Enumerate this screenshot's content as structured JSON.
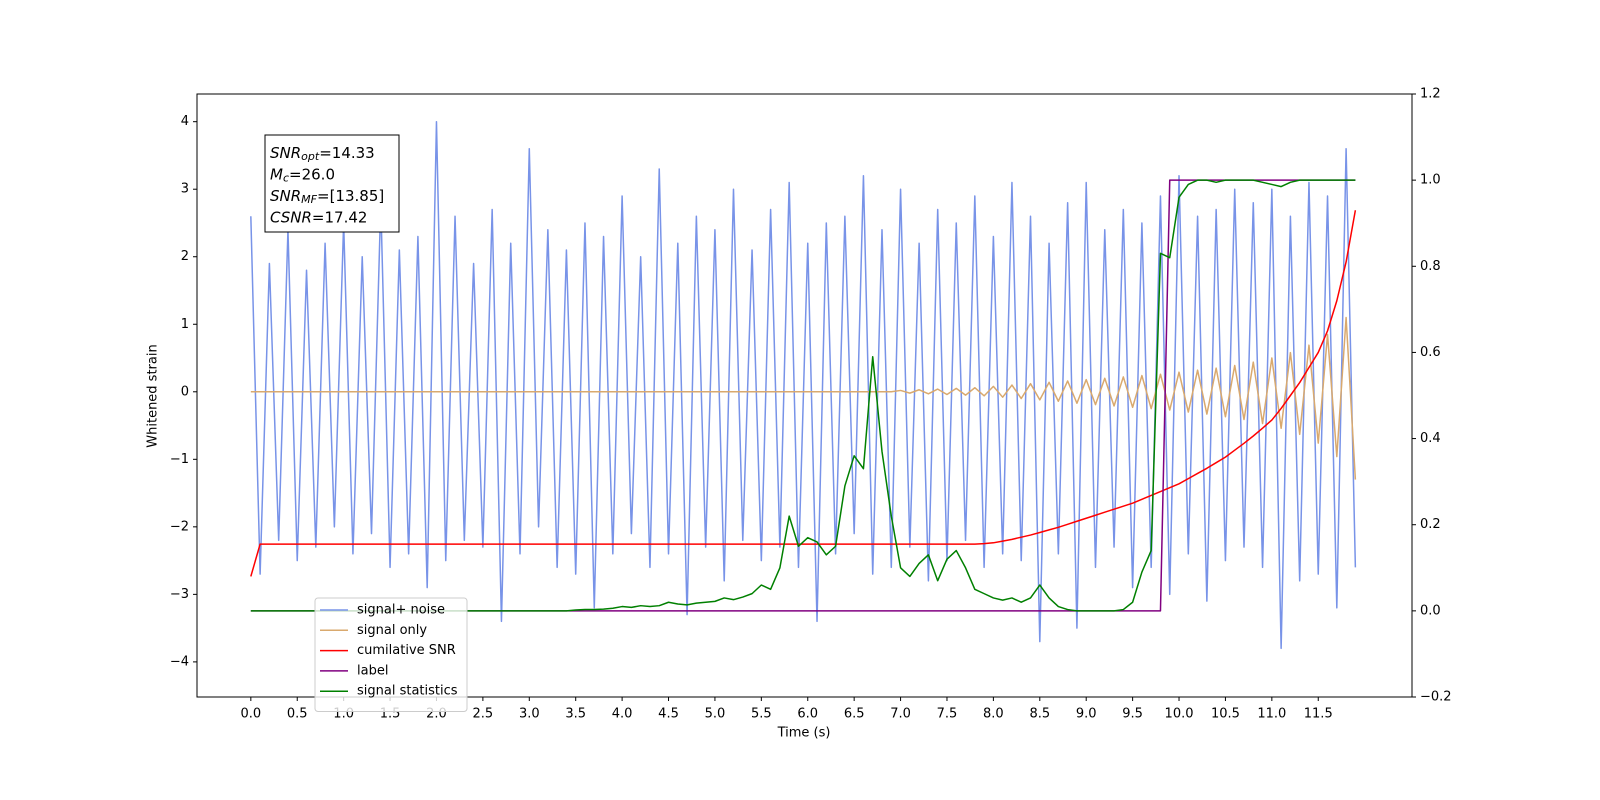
{
  "chart_data": {
    "type": "line",
    "xlabel": "Time (s)",
    "ylabel": "Whitened strain",
    "xlim": [
      -0.58,
      12.51
    ],
    "ylim": [
      -4.52,
      4.41
    ],
    "y2lim": [
      -0.2,
      1.2
    ],
    "xticks": [
      {
        "value": 0,
        "label": "0.0"
      },
      0.5,
      {
        "value": 1,
        "label": "1.0"
      },
      1.5,
      {
        "value": 2,
        "label": "2.0"
      },
      2.5,
      {
        "value": 3,
        "label": "3.0"
      },
      3.5,
      {
        "value": 4,
        "label": "4.0"
      },
      4.5,
      {
        "value": 5,
        "label": "5.0"
      },
      5.5,
      {
        "value": 6,
        "label": "6.0"
      },
      6.5,
      {
        "value": 7,
        "label": "7.0"
      },
      7.5,
      {
        "value": 8,
        "label": "8.0"
      },
      8.5,
      {
        "value": 9,
        "label": "9.0"
      },
      9.5,
      {
        "value": 10,
        "label": "10.0"
      },
      10.5,
      {
        "value": 11,
        "label": "11.0"
      },
      11.5
    ],
    "yticks": [
      {
        "value": -4,
        "label": "−4"
      },
      {
        "value": -3,
        "label": "−3"
      },
      {
        "value": -2,
        "label": "−2"
      },
      {
        "value": -1,
        "label": "−1"
      },
      0,
      1,
      2,
      3,
      4
    ],
    "y2ticks": [
      {
        "value": -0.2,
        "label": "−0.2"
      },
      {
        "value": 0,
        "label": "0.0"
      },
      0.2,
      0.4,
      0.6,
      0.8,
      {
        "value": 1,
        "label": "1.0"
      },
      1.2
    ],
    "legend": "lower left",
    "grid": false,
    "annotations": [
      {
        "main": "SNR",
        "sub": "opt",
        "rest": "=14.33"
      },
      {
        "main": "M",
        "sub": "c",
        "rest": "=26.0"
      },
      {
        "main": "SNR",
        "sub": "MF",
        "rest": "=[13.85]"
      },
      {
        "main": "CSNR",
        "sub": "",
        "rest": "=17.42"
      }
    ],
    "x": [
      0,
      0.1,
      0.2,
      0.3,
      0.4,
      0.5,
      0.6,
      0.7,
      0.8,
      0.9,
      1,
      1.1,
      1.2,
      1.3,
      1.4,
      1.5,
      1.6,
      1.7,
      1.8,
      1.9,
      2,
      2.1,
      2.2,
      2.3,
      2.4,
      2.5,
      2.6,
      2.7,
      2.8,
      2.9,
      3,
      3.1,
      3.2,
      3.3,
      3.4,
      3.5,
      3.6,
      3.7,
      3.8,
      3.9,
      4,
      4.1,
      4.2,
      4.3,
      4.4,
      4.5,
      4.6,
      4.7,
      4.8,
      4.9,
      5,
      5.1,
      5.2,
      5.3,
      5.4,
      5.5,
      5.6,
      5.7,
      5.8,
      5.9,
      6,
      6.1,
      6.2,
      6.3,
      6.4,
      6.5,
      6.6,
      6.7,
      6.8,
      6.9,
      7,
      7.1,
      7.2,
      7.3,
      7.4,
      7.5,
      7.6,
      7.7,
      7.8,
      7.9,
      8,
      8.1,
      8.2,
      8.3,
      8.4,
      8.5,
      8.6,
      8.7,
      8.8,
      8.9,
      9,
      9.1,
      9.2,
      9.3,
      9.4,
      9.5,
      9.6,
      9.7,
      9.8,
      9.9,
      10,
      10.1,
      10.2,
      10.3,
      10.4,
      10.5,
      10.6,
      10.7,
      10.8,
      10.9,
      11,
      11.1,
      11.2,
      11.3,
      11.4,
      11.5,
      11.6,
      11.7,
      11.8,
      11.9
    ],
    "series": [
      {
        "name": "signal+ noise",
        "color": "#7893e8",
        "axis": "y",
        "values": [
          2.6,
          -2.7,
          1.9,
          -2.2,
          2.4,
          -2.5,
          1.8,
          -2.3,
          2.2,
          -2.0,
          2.5,
          -2.4,
          2.0,
          -2.1,
          2.8,
          -2.6,
          2.1,
          -2.4,
          2.3,
          -2.9,
          4.0,
          -2.5,
          2.6,
          -2.2,
          1.9,
          -2.3,
          2.7,
          -3.4,
          2.2,
          -2.4,
          3.6,
          -2.0,
          2.4,
          -2.6,
          2.1,
          -2.7,
          2.5,
          -3.2,
          2.3,
          -2.4,
          2.9,
          -2.1,
          2.0,
          -2.6,
          3.3,
          -2.4,
          2.2,
          -3.3,
          2.6,
          -2.3,
          2.4,
          -2.8,
          3.0,
          -2.2,
          2.1,
          -2.5,
          2.7,
          -2.3,
          3.1,
          -2.6,
          2.2,
          -3.4,
          2.5,
          -2.4,
          2.6,
          -2.1,
          3.2,
          -2.7,
          2.4,
          -2.6,
          3.0,
          -2.3,
          2.2,
          -2.8,
          2.7,
          -2.5,
          2.5,
          -2.2,
          2.9,
          -2.6,
          2.3,
          -2.4,
          3.1,
          -2.5,
          2.6,
          -3.7,
          2.2,
          -2.4,
          2.8,
          -3.5,
          3.1,
          -2.6,
          2.4,
          -2.3,
          2.7,
          -2.9,
          2.5,
          -2.6,
          2.9,
          -3.0,
          3.2,
          -2.4,
          2.6,
          -3.1,
          2.7,
          -2.5,
          3.0,
          -2.3,
          2.8,
          -2.6,
          3.0,
          -3.8,
          2.6,
          -2.8,
          3.1,
          -2.7,
          2.9,
          -3.2,
          3.6,
          -2.6
        ]
      },
      {
        "name": "signal only",
        "color": "#d9a96e",
        "axis": "y",
        "values": [
          0,
          0,
          0,
          0,
          0,
          0,
          0,
          0,
          0,
          0,
          0,
          0,
          0,
          0,
          0,
          0,
          0,
          0,
          0,
          0,
          0,
          0,
          0,
          0,
          0,
          0,
          0,
          0,
          0,
          0,
          0,
          0,
          0,
          0,
          0,
          0,
          0,
          0,
          0,
          0,
          0,
          0,
          0,
          0,
          0,
          0,
          0,
          0,
          0,
          0,
          0,
          0,
          0,
          0,
          0,
          0,
          0,
          0,
          0,
          0,
          0,
          0,
          0,
          0,
          0,
          0,
          0,
          0,
          0,
          0,
          0.02,
          -0.02,
          0.03,
          -0.03,
          0.04,
          -0.04,
          0.05,
          -0.05,
          0.06,
          -0.06,
          0.08,
          -0.08,
          0.1,
          -0.1,
          0.12,
          -0.12,
          0.14,
          -0.14,
          0.16,
          -0.17,
          0.18,
          -0.19,
          0.2,
          -0.21,
          0.22,
          -0.23,
          0.24,
          -0.25,
          0.26,
          -0.27,
          0.29,
          -0.3,
          0.32,
          -0.33,
          0.35,
          -0.37,
          0.39,
          -0.41,
          0.44,
          -0.47,
          0.5,
          -0.54,
          0.58,
          -0.63,
          0.69,
          -0.76,
          0.85,
          -0.96,
          1.1,
          -1.3
        ]
      },
      {
        "name": "cumilative SNR",
        "color": "#ff0000",
        "axis": "y2",
        "values": [
          0.08,
          0.155,
          0.155,
          0.155,
          0.155,
          0.155,
          0.155,
          0.155,
          0.155,
          0.155,
          0.155,
          0.155,
          0.155,
          0.155,
          0.155,
          0.155,
          0.155,
          0.155,
          0.155,
          0.155,
          0.155,
          0.155,
          0.155,
          0.155,
          0.155,
          0.155,
          0.155,
          0.155,
          0.155,
          0.155,
          0.155,
          0.155,
          0.155,
          0.155,
          0.155,
          0.155,
          0.155,
          0.155,
          0.155,
          0.155,
          0.155,
          0.155,
          0.155,
          0.155,
          0.155,
          0.155,
          0.155,
          0.155,
          0.155,
          0.155,
          0.155,
          0.155,
          0.155,
          0.155,
          0.155,
          0.155,
          0.155,
          0.155,
          0.155,
          0.155,
          0.155,
          0.155,
          0.155,
          0.155,
          0.155,
          0.155,
          0.155,
          0.155,
          0.155,
          0.155,
          0.155,
          0.155,
          0.155,
          0.155,
          0.155,
          0.155,
          0.155,
          0.155,
          0.155,
          0.156,
          0.158,
          0.162,
          0.166,
          0.171,
          0.176,
          0.182,
          0.188,
          0.194,
          0.201,
          0.208,
          0.215,
          0.222,
          0.229,
          0.236,
          0.243,
          0.25,
          0.259,
          0.268,
          0.277,
          0.286,
          0.295,
          0.307,
          0.319,
          0.331,
          0.344,
          0.357,
          0.373,
          0.389,
          0.406,
          0.424,
          0.443,
          0.47,
          0.5,
          0.53,
          0.565,
          0.6,
          0.65,
          0.72,
          0.81,
          0.93
        ]
      },
      {
        "name": "label",
        "color": "#800080",
        "axis": "y2",
        "values": [
          0,
          0,
          0,
          0,
          0,
          0,
          0,
          0,
          0,
          0,
          0,
          0,
          0,
          0,
          0,
          0,
          0,
          0,
          0,
          0,
          0,
          0,
          0,
          0,
          0,
          0,
          0,
          0,
          0,
          0,
          0,
          0,
          0,
          0,
          0,
          0,
          0,
          0,
          0,
          0,
          0,
          0,
          0,
          0,
          0,
          0,
          0,
          0,
          0,
          0,
          0,
          0,
          0,
          0,
          0,
          0,
          0,
          0,
          0,
          0,
          0,
          0,
          0,
          0,
          0,
          0,
          0,
          0,
          0,
          0,
          0,
          0,
          0,
          0,
          0,
          0,
          0,
          0,
          0,
          0,
          0,
          0,
          0,
          0,
          0,
          0,
          0,
          0,
          0,
          0,
          0,
          0,
          0,
          0,
          0,
          0,
          0,
          0,
          0,
          1,
          1,
          1,
          1,
          1,
          1,
          1,
          1,
          1,
          1,
          1,
          1,
          1,
          1,
          1,
          1,
          1,
          1,
          1,
          1,
          1
        ]
      },
      {
        "name": "signal statistics",
        "color": "#008000",
        "axis": "y2",
        "values": [
          0,
          0,
          0,
          0,
          0,
          0,
          0,
          0,
          0,
          0,
          0,
          0,
          0,
          0,
          0,
          0,
          0,
          0,
          0,
          0,
          0,
          0,
          0,
          0,
          0,
          0,
          0,
          0,
          0,
          0,
          0,
          0,
          0,
          0,
          0,
          0.002,
          0.003,
          0.003,
          0.004,
          0.006,
          0.01,
          0.008,
          0.012,
          0.01,
          0.012,
          0.02,
          0.016,
          0.014,
          0.018,
          0.02,
          0.022,
          0.03,
          0.026,
          0.032,
          0.04,
          0.06,
          0.05,
          0.1,
          0.22,
          0.15,
          0.17,
          0.16,
          0.13,
          0.15,
          0.29,
          0.36,
          0.33,
          0.59,
          0.37,
          0.22,
          0.1,
          0.08,
          0.11,
          0.13,
          0.07,
          0.12,
          0.14,
          0.1,
          0.05,
          0.04,
          0.03,
          0.025,
          0.03,
          0.02,
          0.03,
          0.06,
          0.03,
          0.01,
          0.003,
          0,
          0,
          0,
          0,
          0,
          0.003,
          0.02,
          0.09,
          0.14,
          0.83,
          0.82,
          0.96,
          0.99,
          1.0,
          1.0,
          0.995,
          1.0,
          1.0,
          1.0,
          1.0,
          0.995,
          0.99,
          0.985,
          0.995,
          1.0,
          1.0,
          1.0,
          1.0,
          1.0,
          1.0,
          1.0
        ]
      }
    ]
  }
}
